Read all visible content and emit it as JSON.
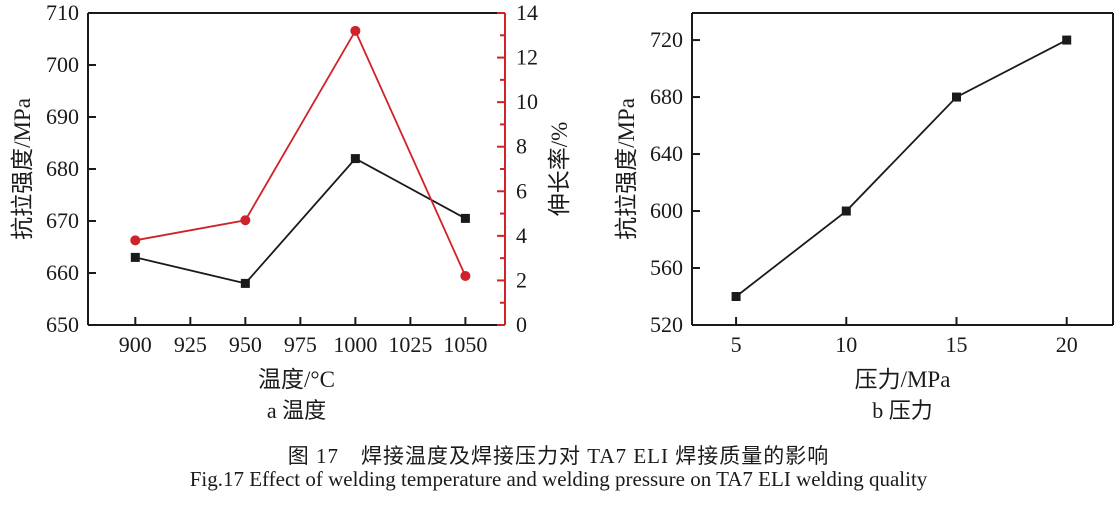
{
  "caption": {
    "zh": "图 17　焊接温度及焊接压力对 TA7 ELI 焊接质量的影响",
    "en": "Fig.17 Effect of welding temperature and welding pressure on TA7 ELI welding quality"
  },
  "colors": {
    "axis_black": "#1a1a1a",
    "series_black": "#1a1a1a",
    "series_red": "#d02229",
    "background": "#ffffff"
  },
  "chart_data": [
    {
      "id": "chart-a",
      "type": "line",
      "subtitle": "a 温度",
      "xlabel": "温度/°C",
      "ylabel_left": "抗拉强度/MPa",
      "ylabel_right": "伸长率/%",
      "x_ticks": [
        900,
        925,
        950,
        975,
        1000,
        1025,
        1050
      ],
      "xlim": [
        878.5,
        1068
      ],
      "ylim_left": [
        650,
        710
      ],
      "y_ticks_left": [
        650,
        660,
        670,
        680,
        690,
        700,
        710
      ],
      "ylim_right": [
        0,
        14
      ],
      "y_ticks_right": [
        0,
        2,
        4,
        6,
        8,
        10,
        12,
        14
      ],
      "y_minor_ticks_right": [
        1,
        3,
        5,
        7,
        9,
        11,
        13
      ],
      "grid": false,
      "legend": "none",
      "series": [
        {
          "name": "tensile-strength",
          "axis": "left",
          "color": "#1a1a1a",
          "marker": "square",
          "x": [
            900,
            950,
            1000,
            1050
          ],
          "y": [
            663,
            658,
            682,
            670.5
          ]
        },
        {
          "name": "elongation",
          "axis": "right",
          "color": "#d02229",
          "marker": "circle",
          "x": [
            900,
            950,
            1000,
            1050
          ],
          "y": [
            3.8,
            4.7,
            13.2,
            2.2
          ]
        }
      ]
    },
    {
      "id": "chart-b",
      "type": "line",
      "subtitle": "b 压力",
      "xlabel": "压力/MPa",
      "ylabel_left": "抗拉强度/MPa",
      "x_ticks": [
        5,
        10,
        15,
        20
      ],
      "xlim": [
        3,
        22.1
      ],
      "ylim_left": [
        520,
        739
      ],
      "y_ticks_left": [
        520,
        560,
        600,
        640,
        680,
        720
      ],
      "grid": false,
      "legend": "none",
      "series": [
        {
          "name": "tensile-strength",
          "axis": "left",
          "color": "#1a1a1a",
          "marker": "square",
          "x": [
            5,
            10,
            15,
            20
          ],
          "y": [
            540,
            600,
            680,
            720
          ]
        }
      ]
    }
  ]
}
